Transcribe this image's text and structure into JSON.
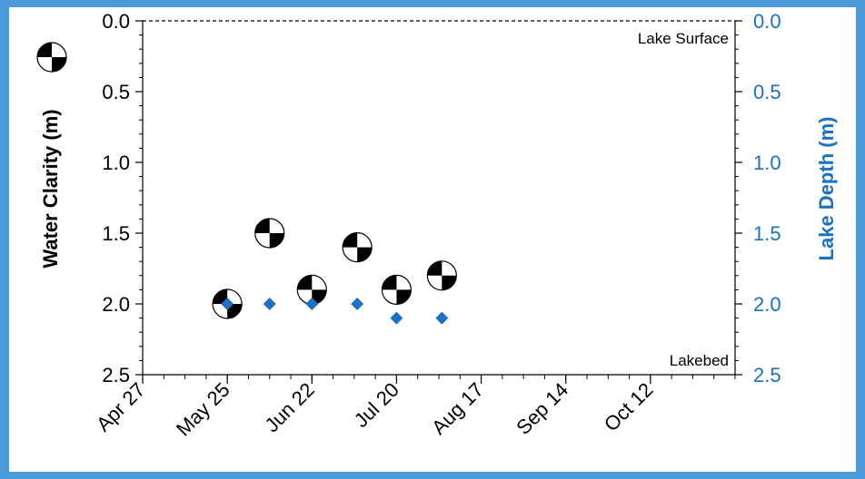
{
  "chart_data": {
    "type": "scatter",
    "x_axis": {
      "tick_labels": [
        "Apr 27",
        "May 25",
        "Jun 22",
        "Jul 20",
        "Aug 17",
        "Sep 14",
        "Oct 12"
      ],
      "range": [
        "Apr 27",
        "Nov 9"
      ]
    },
    "y_left": {
      "label": "Water Clarity (m)",
      "tick_labels": [
        "0.0",
        "0.5",
        "1.0",
        "1.5",
        "2.0",
        "2.5"
      ],
      "range": [
        0,
        2.5
      ],
      "inverted": true
    },
    "y_right": {
      "label": "Lake Depth (m)",
      "tick_labels": [
        "0.0",
        "0.5",
        "1.0",
        "1.5",
        "2.0",
        "2.5"
      ],
      "range": [
        0,
        2.5
      ],
      "inverted": true
    },
    "annotations": {
      "surface": "Lake Surface",
      "bed": "Lakebed"
    },
    "series": [
      {
        "marker": "secchi-disk",
        "points": [
          {
            "x": "May 25",
            "y": 2.0
          },
          {
            "x": "Jun 8",
            "y": 1.5
          },
          {
            "x": "Jun 22",
            "y": 1.9
          },
          {
            "x": "Jul 7",
            "y": 1.6
          },
          {
            "x": "Jul 20",
            "y": 1.9
          },
          {
            "x": "Aug 4",
            "y": 1.8
          }
        ]
      },
      {
        "marker": "diamond",
        "color": "#1a72c0",
        "points": [
          {
            "x": "May 25",
            "y": 2.0
          },
          {
            "x": "Jun 8",
            "y": 2.0
          },
          {
            "x": "Jun 22",
            "y": 2.0
          },
          {
            "x": "Jul 7",
            "y": 2.0
          },
          {
            "x": "Jul 20",
            "y": 2.1
          },
          {
            "x": "Aug 4",
            "y": 2.1
          }
        ]
      }
    ],
    "grid": false
  },
  "colors": {
    "background": "#4a9ad9",
    "right_axis": "#1a72c0",
    "left_axis": "#000000"
  }
}
